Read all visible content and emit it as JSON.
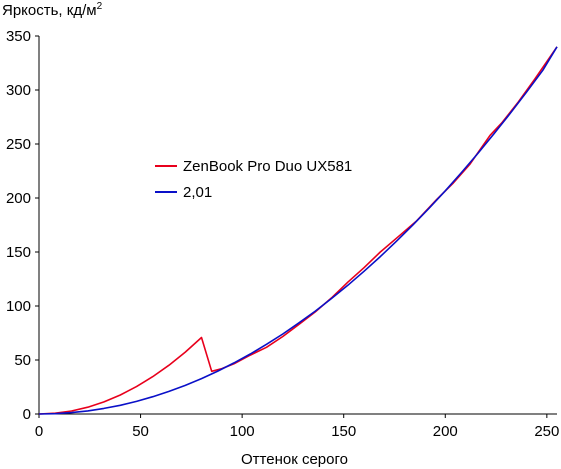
{
  "chart_data": {
    "type": "line",
    "title": "",
    "ylabel_text": "Яркость, кд/м",
    "ylabel_sup": "2",
    "xlabel": "Оттенок серого",
    "xlim": [
      0,
      255
    ],
    "ylim": [
      0,
      350
    ],
    "xticks": [
      "0",
      "50",
      "100",
      "150",
      "200",
      "250"
    ],
    "xtick_values": [
      0,
      50,
      100,
      150,
      200,
      250
    ],
    "yticks": [
      "0",
      "50",
      "100",
      "150",
      "200",
      "250",
      "300",
      "350"
    ],
    "ytick_values": [
      0,
      50,
      100,
      150,
      200,
      250,
      300,
      350
    ],
    "grid": false,
    "legend_position": "center-left",
    "series": [
      {
        "name": "ZenBook Pro Duo UX581",
        "color": "#e8001c",
        "x": [
          0,
          8,
          16,
          24,
          32,
          40,
          48,
          56,
          64,
          72,
          80,
          85,
          90,
          96,
          104,
          112,
          120,
          128,
          136,
          144,
          152,
          160,
          168,
          178,
          186,
          196,
          204,
          212,
          222,
          228,
          236,
          244,
          255
        ],
        "y": [
          0,
          0.7,
          2.8,
          6.3,
          11.2,
          17.6,
          25.4,
          34.6,
          45.2,
          57.3,
          70.8,
          39.5,
          42,
          46.5,
          54.5,
          61.8,
          71.8,
          83,
          94.5,
          107.5,
          122,
          135.5,
          150,
          166,
          179,
          199,
          214,
          231,
          258,
          270,
          289,
          310,
          340
        ]
      },
      {
        "name": "2,01",
        "color": "#0a10c8",
        "x": [
          0,
          8,
          16,
          24,
          32,
          40,
          48,
          56,
          64,
          72,
          80,
          88,
          96,
          104,
          112,
          120,
          128,
          136,
          144,
          152,
          160,
          168,
          176,
          184,
          192,
          200,
          208,
          216,
          224,
          232,
          240,
          248,
          255
        ],
        "y": [
          0,
          0.3,
          1.3,
          2.9,
          5.2,
          8.1,
          11.7,
          16.0,
          20.9,
          26.5,
          32.8,
          39.7,
          47.3,
          55.6,
          64.5,
          74.1,
          84.4,
          95.3,
          106.9,
          119.2,
          132.1,
          145.7,
          160.0,
          174.9,
          190.5,
          206.7,
          223.6,
          241.2,
          259.5,
          278.4,
          298.0,
          318.2,
          340
        ]
      }
    ]
  }
}
